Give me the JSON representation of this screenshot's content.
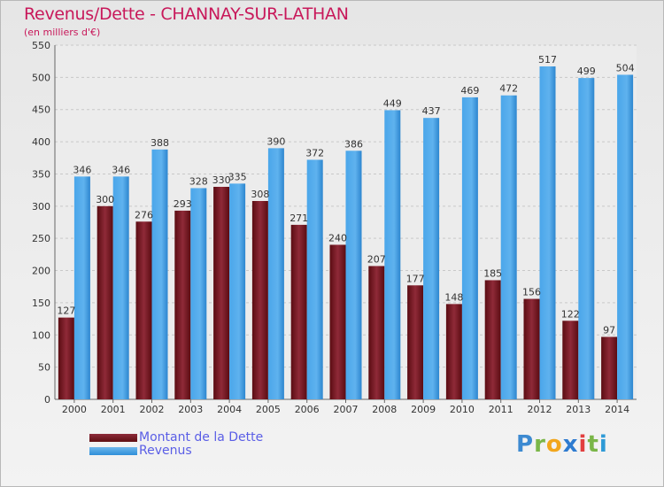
{
  "title": "Revenus/Dette - CHANNAY-SUR-LATHAN",
  "subtitle": "(en milliers d'€)",
  "colors": {
    "title": "#c8185a",
    "debt": "#6a1420",
    "revenue": "#3a9ae2",
    "legend_text": "#5a5ee6",
    "grid": "#c8c8c8"
  },
  "chart_data": {
    "type": "bar",
    "categories": [
      "2000",
      "2001",
      "2002",
      "2003",
      "2004",
      "2005",
      "2006",
      "2007",
      "2008",
      "2009",
      "2010",
      "2011",
      "2012",
      "2013",
      "2014"
    ],
    "series": [
      {
        "name": "Montant de la Dette",
        "values": [
          127,
          300,
          276,
          293,
          330,
          308,
          271,
          240,
          207,
          177,
          148,
          185,
          156,
          122,
          97
        ]
      },
      {
        "name": "Revenus",
        "values": [
          346,
          346,
          388,
          328,
          335,
          390,
          372,
          386,
          449,
          437,
          469,
          472,
          517,
          499,
          504
        ]
      }
    ],
    "ylim": [
      0,
      550
    ],
    "yticks": [
      0,
      50,
      100,
      150,
      200,
      250,
      300,
      350,
      400,
      450,
      500,
      550
    ],
    "grid": true,
    "legend_position": "bottom-left"
  },
  "legend": {
    "debt_label": "Montant de la Dette",
    "revenue_label": "Revenus"
  },
  "logo": {
    "p": "P",
    "r": "r",
    "o": "o",
    "x": "x",
    "i": "i",
    "t": "t",
    "i2": "i"
  }
}
